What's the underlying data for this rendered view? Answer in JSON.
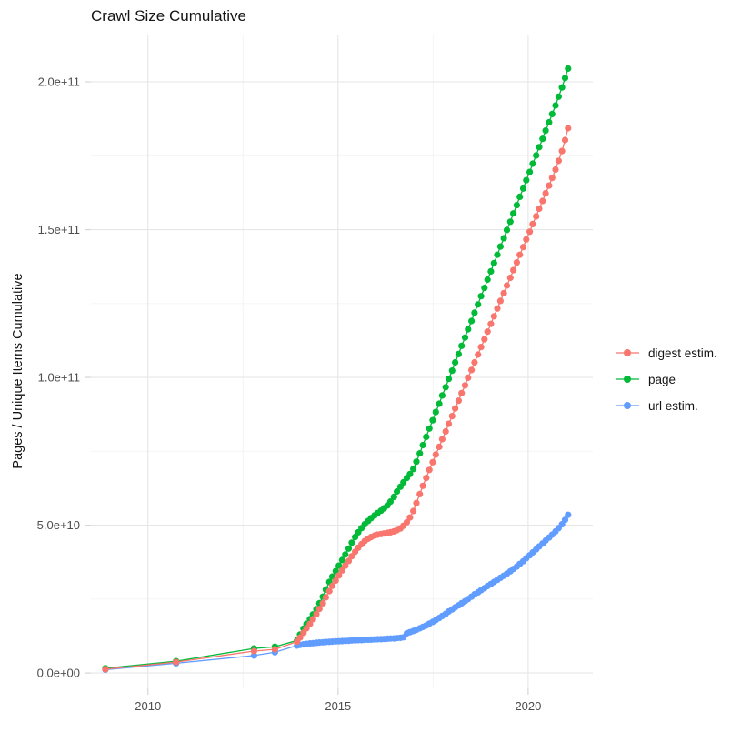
{
  "title": "Crawl Size Cumulative",
  "y_axis": {
    "title": "Pages / Unique Items Cumulative",
    "tick_labels": [
      "0.0e+00",
      "5.0e+10",
      "1.0e+11",
      "1.5e+11",
      "2.0e+11"
    ],
    "tick_values_e9": [
      0,
      50,
      100,
      150,
      200
    ],
    "minor_values_e9": [
      25,
      75,
      125,
      175
    ]
  },
  "x_axis": {
    "tick_labels": [
      "2010",
      "2015",
      "2020"
    ],
    "tick_values": [
      2010,
      2015,
      2020
    ],
    "minor_values": [
      2012.5,
      2017.5
    ]
  },
  "legend": [
    {
      "label": "digest estim.",
      "color": "#F8766D",
      "icon": "line-dot-key-icon"
    },
    {
      "label": "page",
      "color": "#00BA38",
      "icon": "line-dot-key-icon"
    },
    {
      "label": "url estim.",
      "color": "#619CFF",
      "icon": "line-dot-key-icon"
    }
  ],
  "colors": {
    "digest": "#F8766D",
    "page": "#00BA38",
    "url": "#619CFF",
    "grid_major": "#E6E6E6",
    "grid_minor": "#F3F3F3",
    "tick_mark": "#D6D6D6",
    "axis_text": "#4D4D4D",
    "background": "#FFFFFF"
  },
  "chart_data": {
    "type": "scatter",
    "note": "cumulative crawl size; x = calendar year (decimal), y = items in billions (1e9)",
    "value_unit": "1e9 items",
    "xlim": [
      2008.5,
      2021.7
    ],
    "ylim_e9": [
      -5.2,
      216
    ],
    "grid": "major+minor, light gray on white",
    "legend_position": "right",
    "draw_order": [
      "url estim.",
      "page",
      "digest estim."
    ],
    "series": [
      {
        "name": "url estim.",
        "color": "#619CFF",
        "points": [
          [
            2008.88,
            1.1
          ],
          [
            2010.74,
            3.3
          ],
          [
            2012.79,
            5.9
          ],
          [
            2013.34,
            7.0
          ],
          [
            2013.92,
            9.3
          ],
          [
            2014.0,
            9.5
          ],
          [
            2014.09,
            9.7
          ],
          [
            2014.17,
            9.85
          ],
          [
            2014.26,
            10.0
          ],
          [
            2014.34,
            10.1
          ],
          [
            2014.43,
            10.2
          ],
          [
            2014.51,
            10.3
          ],
          [
            2014.6,
            10.4
          ],
          [
            2014.68,
            10.5
          ],
          [
            2014.77,
            10.55
          ],
          [
            2014.85,
            10.6
          ],
          [
            2014.94,
            10.7
          ],
          [
            2015.02,
            10.75
          ],
          [
            2015.11,
            10.8
          ],
          [
            2015.19,
            10.85
          ],
          [
            2015.28,
            10.9
          ],
          [
            2015.36,
            11.0
          ],
          [
            2015.45,
            11.05
          ],
          [
            2015.53,
            11.1
          ],
          [
            2015.62,
            11.15
          ],
          [
            2015.7,
            11.2
          ],
          [
            2015.79,
            11.25
          ],
          [
            2015.87,
            11.3
          ],
          [
            2015.96,
            11.35
          ],
          [
            2016.04,
            11.4
          ],
          [
            2016.13,
            11.45
          ],
          [
            2016.21,
            11.5
          ],
          [
            2016.3,
            11.6
          ],
          [
            2016.38,
            11.65
          ],
          [
            2016.47,
            11.7
          ],
          [
            2016.55,
            11.8
          ],
          [
            2016.64,
            11.9
          ],
          [
            2016.72,
            12.1
          ],
          [
            2016.81,
            13.4
          ],
          [
            2016.89,
            13.8
          ],
          [
            2016.98,
            14.2
          ],
          [
            2017.06,
            14.6
          ],
          [
            2017.15,
            15.1
          ],
          [
            2017.23,
            15.6
          ],
          [
            2017.32,
            16.1
          ],
          [
            2017.4,
            16.7
          ],
          [
            2017.49,
            17.3
          ],
          [
            2017.57,
            17.9
          ],
          [
            2017.66,
            18.6
          ],
          [
            2017.74,
            19.3
          ],
          [
            2017.83,
            20.0
          ],
          [
            2017.91,
            20.8
          ],
          [
            2018.0,
            21.5
          ],
          [
            2018.08,
            22.2
          ],
          [
            2018.17,
            22.9
          ],
          [
            2018.25,
            23.6
          ],
          [
            2018.34,
            24.3
          ],
          [
            2018.42,
            25.0
          ],
          [
            2018.51,
            25.8
          ],
          [
            2018.59,
            26.6
          ],
          [
            2018.68,
            27.3
          ],
          [
            2018.76,
            28.0
          ],
          [
            2018.85,
            28.7
          ],
          [
            2018.93,
            29.4
          ],
          [
            2019.02,
            30.1
          ],
          [
            2019.1,
            30.8
          ],
          [
            2019.19,
            31.5
          ],
          [
            2019.27,
            32.2
          ],
          [
            2019.36,
            32.9
          ],
          [
            2019.44,
            33.6
          ],
          [
            2019.53,
            34.4
          ],
          [
            2019.61,
            35.2
          ],
          [
            2019.7,
            36.0
          ],
          [
            2019.78,
            36.9
          ],
          [
            2019.87,
            37.8
          ],
          [
            2019.95,
            38.8
          ],
          [
            2020.04,
            39.8
          ],
          [
            2020.12,
            40.8
          ],
          [
            2020.21,
            41.8
          ],
          [
            2020.29,
            42.8
          ],
          [
            2020.38,
            43.8
          ],
          [
            2020.46,
            44.8
          ],
          [
            2020.55,
            45.8
          ],
          [
            2020.63,
            46.8
          ],
          [
            2020.72,
            47.9
          ],
          [
            2020.8,
            49.0
          ],
          [
            2020.89,
            50.3
          ],
          [
            2020.97,
            51.8
          ],
          [
            2021.05,
            53.5
          ]
        ]
      },
      {
        "name": "page",
        "color": "#00BA38",
        "points": [
          [
            2008.88,
            1.6
          ],
          [
            2010.74,
            4.0
          ],
          [
            2012.79,
            8.3
          ],
          [
            2013.34,
            8.9
          ],
          [
            2013.92,
            11.0
          ],
          [
            2014.0,
            13.0
          ],
          [
            2014.09,
            15.0
          ],
          [
            2014.17,
            16.6
          ],
          [
            2014.26,
            18.2
          ],
          [
            2014.34,
            19.8
          ],
          [
            2014.43,
            21.6
          ],
          [
            2014.51,
            23.6
          ],
          [
            2014.6,
            25.8
          ],
          [
            2014.68,
            28.2
          ],
          [
            2014.77,
            30.8
          ],
          [
            2014.85,
            32.6
          ],
          [
            2014.94,
            34.5
          ],
          [
            2015.02,
            36.3
          ],
          [
            2015.11,
            38.2
          ],
          [
            2015.19,
            40.1
          ],
          [
            2015.28,
            42.1
          ],
          [
            2015.36,
            44.1
          ],
          [
            2015.45,
            46.0
          ],
          [
            2015.53,
            47.6
          ],
          [
            2015.62,
            49.0
          ],
          [
            2015.7,
            50.3
          ],
          [
            2015.79,
            51.4
          ],
          [
            2015.87,
            52.4
          ],
          [
            2015.96,
            53.3
          ],
          [
            2016.04,
            54.1
          ],
          [
            2016.13,
            54.9
          ],
          [
            2016.21,
            55.7
          ],
          [
            2016.3,
            56.7
          ],
          [
            2016.38,
            58.0
          ],
          [
            2016.47,
            59.6
          ],
          [
            2016.55,
            61.4
          ],
          [
            2016.64,
            63.0
          ],
          [
            2016.72,
            64.5
          ],
          [
            2016.81,
            66.0
          ],
          [
            2016.89,
            67.3
          ],
          [
            2016.98,
            69.0
          ],
          [
            2017.06,
            71.5
          ],
          [
            2017.15,
            74.3
          ],
          [
            2017.23,
            77.1
          ],
          [
            2017.32,
            79.9
          ],
          [
            2017.4,
            82.7
          ],
          [
            2017.49,
            85.5
          ],
          [
            2017.57,
            88.3
          ],
          [
            2017.66,
            91.1
          ],
          [
            2017.74,
            93.9
          ],
          [
            2017.83,
            96.7
          ],
          [
            2017.91,
            99.5
          ],
          [
            2018.0,
            102.3
          ],
          [
            2018.08,
            105.1
          ],
          [
            2018.17,
            107.9
          ],
          [
            2018.25,
            110.7
          ],
          [
            2018.34,
            113.5
          ],
          [
            2018.42,
            116.3
          ],
          [
            2018.51,
            119.1
          ],
          [
            2018.59,
            121.9
          ],
          [
            2018.68,
            124.7
          ],
          [
            2018.76,
            127.5
          ],
          [
            2018.85,
            130.3
          ],
          [
            2018.93,
            133.1
          ],
          [
            2019.02,
            135.9
          ],
          [
            2019.1,
            138.7
          ],
          [
            2019.19,
            141.5
          ],
          [
            2019.27,
            144.3
          ],
          [
            2019.36,
            147.1
          ],
          [
            2019.44,
            149.9
          ],
          [
            2019.53,
            152.7
          ],
          [
            2019.61,
            155.5
          ],
          [
            2019.7,
            158.3
          ],
          [
            2019.78,
            161.1
          ],
          [
            2019.87,
            163.9
          ],
          [
            2019.95,
            166.7
          ],
          [
            2020.04,
            169.5
          ],
          [
            2020.12,
            172.3
          ],
          [
            2020.21,
            175.1
          ],
          [
            2020.29,
            177.9
          ],
          [
            2020.38,
            180.7
          ],
          [
            2020.46,
            183.5
          ],
          [
            2020.55,
            186.3
          ],
          [
            2020.63,
            189.1
          ],
          [
            2020.72,
            192.0
          ],
          [
            2020.8,
            195.0
          ],
          [
            2020.89,
            198.1
          ],
          [
            2020.97,
            201.3
          ],
          [
            2021.05,
            204.5
          ]
        ]
      },
      {
        "name": "digest estim.",
        "color": "#F8766D",
        "points": [
          [
            2008.88,
            1.3
          ],
          [
            2010.74,
            3.7
          ],
          [
            2012.79,
            7.4
          ],
          [
            2013.34,
            8.0
          ],
          [
            2013.92,
            10.6
          ],
          [
            2014.0,
            12.0
          ],
          [
            2014.09,
            13.6
          ],
          [
            2014.17,
            15.1
          ],
          [
            2014.26,
            16.6
          ],
          [
            2014.34,
            18.2
          ],
          [
            2014.43,
            19.9
          ],
          [
            2014.51,
            21.7
          ],
          [
            2014.6,
            23.6
          ],
          [
            2014.68,
            25.6
          ],
          [
            2014.77,
            27.7
          ],
          [
            2014.85,
            29.5
          ],
          [
            2014.94,
            31.3
          ],
          [
            2015.02,
            33.0
          ],
          [
            2015.11,
            34.7
          ],
          [
            2015.19,
            36.3
          ],
          [
            2015.28,
            37.9
          ],
          [
            2015.36,
            39.5
          ],
          [
            2015.45,
            41.0
          ],
          [
            2015.53,
            42.4
          ],
          [
            2015.62,
            43.6
          ],
          [
            2015.7,
            44.6
          ],
          [
            2015.79,
            45.4
          ],
          [
            2015.87,
            46.0
          ],
          [
            2015.96,
            46.5
          ],
          [
            2016.04,
            46.8
          ],
          [
            2016.13,
            47.0
          ],
          [
            2016.21,
            47.2
          ],
          [
            2016.3,
            47.4
          ],
          [
            2016.38,
            47.6
          ],
          [
            2016.47,
            47.9
          ],
          [
            2016.55,
            48.3
          ],
          [
            2016.64,
            48.9
          ],
          [
            2016.72,
            49.8
          ],
          [
            2016.81,
            51.0
          ],
          [
            2016.89,
            52.6
          ],
          [
            2016.98,
            54.8
          ],
          [
            2017.06,
            57.5
          ],
          [
            2017.15,
            60.5
          ],
          [
            2017.23,
            63.3
          ],
          [
            2017.32,
            66.0
          ],
          [
            2017.4,
            68.7
          ],
          [
            2017.49,
            71.3
          ],
          [
            2017.57,
            73.9
          ],
          [
            2017.66,
            76.5
          ],
          [
            2017.74,
            79.1
          ],
          [
            2017.83,
            81.7
          ],
          [
            2017.91,
            84.3
          ],
          [
            2018.0,
            86.9
          ],
          [
            2018.08,
            89.5
          ],
          [
            2018.17,
            92.1
          ],
          [
            2018.25,
            94.7
          ],
          [
            2018.34,
            97.3
          ],
          [
            2018.42,
            99.9
          ],
          [
            2018.51,
            102.5
          ],
          [
            2018.59,
            105.1
          ],
          [
            2018.68,
            107.7
          ],
          [
            2018.76,
            110.3
          ],
          [
            2018.85,
            112.9
          ],
          [
            2018.93,
            115.5
          ],
          [
            2019.02,
            118.1
          ],
          [
            2019.1,
            120.7
          ],
          [
            2019.19,
            123.3
          ],
          [
            2019.27,
            125.9
          ],
          [
            2019.36,
            128.5
          ],
          [
            2019.44,
            131.1
          ],
          [
            2019.53,
            133.7
          ],
          [
            2019.61,
            136.3
          ],
          [
            2019.7,
            138.9
          ],
          [
            2019.78,
            141.5
          ],
          [
            2019.87,
            144.1
          ],
          [
            2019.95,
            146.7
          ],
          [
            2020.04,
            149.3
          ],
          [
            2020.12,
            151.9
          ],
          [
            2020.21,
            154.5
          ],
          [
            2020.29,
            157.1
          ],
          [
            2020.38,
            159.7
          ],
          [
            2020.46,
            162.3
          ],
          [
            2020.55,
            164.9
          ],
          [
            2020.63,
            167.5
          ],
          [
            2020.72,
            170.3
          ],
          [
            2020.8,
            173.3
          ],
          [
            2020.89,
            176.6
          ],
          [
            2020.97,
            180.3
          ],
          [
            2021.05,
            184.3
          ]
        ]
      }
    ]
  }
}
